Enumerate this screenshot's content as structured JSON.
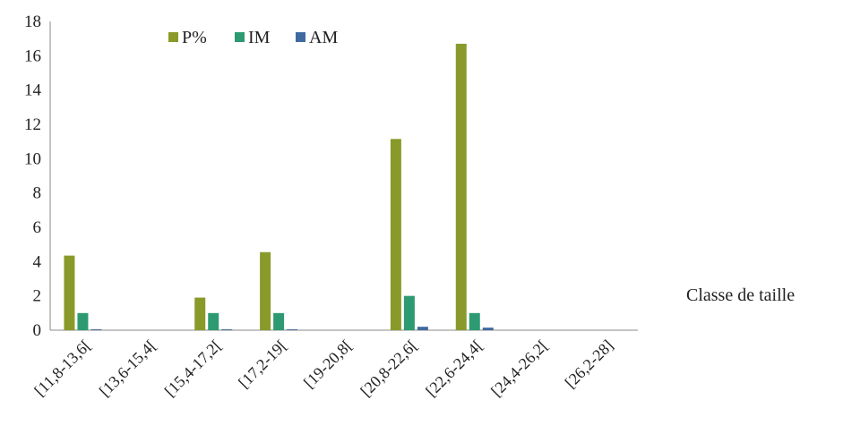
{
  "chart_data": {
    "type": "bar",
    "title": "",
    "xlabel": "Classe de taille",
    "ylabel": "",
    "ylim": [
      0,
      18
    ],
    "yticks": [
      "0",
      "2",
      "4",
      "6",
      "8",
      "10",
      "12",
      "14",
      "16",
      "18"
    ],
    "grid": false,
    "legend_position": "top-center",
    "categories": [
      "[11,8-13,6[",
      "[13,6-15,4[",
      "[15,4-17,2[",
      "[17,2-19[",
      "[19-20,8[",
      "[20,8-22,6[",
      "[22,6-24,4[",
      "[24,4-26,2[",
      "[26,2-28]"
    ],
    "series": [
      {
        "name": "P%",
        "color": "#8a9a2a",
        "values": [
          4.35,
          0,
          1.9,
          4.55,
          0,
          11.15,
          16.7,
          0,
          0
        ]
      },
      {
        "name": "IM",
        "color": "#2e9a72",
        "values": [
          1.0,
          0,
          1.0,
          1.0,
          0,
          2.0,
          1.0,
          0,
          0
        ]
      },
      {
        "name": "AM",
        "color": "#3f6aa0",
        "values": [
          0.05,
          0,
          0.05,
          0.05,
          0,
          0.2,
          0.15,
          0,
          0
        ]
      }
    ]
  }
}
